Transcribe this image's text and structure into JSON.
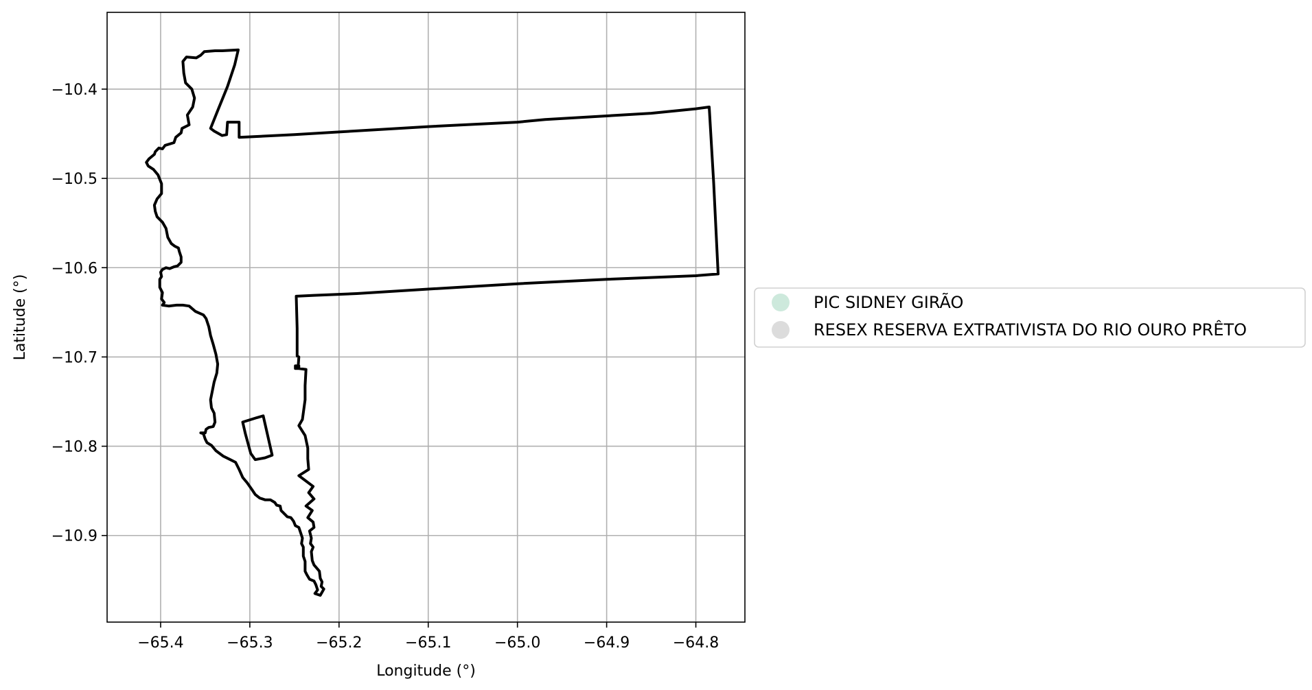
{
  "chart_data": {
    "type": "map",
    "xlabel": "Longitude (°)",
    "ylabel": "Latitude (°)",
    "xlim": [
      -65.46,
      -64.745
    ],
    "ylim": [
      -10.997,
      -10.314
    ],
    "grid": true,
    "x_ticks": [
      {
        "value": -65.4,
        "label": "−65.4"
      },
      {
        "value": -65.3,
        "label": "−65.3"
      },
      {
        "value": -65.2,
        "label": "−65.2"
      },
      {
        "value": -65.1,
        "label": "−65.1"
      },
      {
        "value": -65.0,
        "label": "−65.0"
      },
      {
        "value": -64.9,
        "label": "−64.9"
      },
      {
        "value": -64.8,
        "label": "−64.8"
      }
    ],
    "y_ticks": [
      {
        "value": -10.4,
        "label": "−10.4"
      },
      {
        "value": -10.5,
        "label": "−10.5"
      },
      {
        "value": -10.6,
        "label": "−10.6"
      },
      {
        "value": -10.7,
        "label": "−10.7"
      },
      {
        "value": -10.8,
        "label": "−10.8"
      },
      {
        "value": -10.9,
        "label": "−10.9"
      }
    ],
    "legend_position": "center-right, outside axes",
    "legend": [
      {
        "label": "PIC SIDNEY GIRÃO",
        "color": "#cde9dc"
      },
      {
        "label": "RESEX RESERVA EXTRATIVISTA DO RIO OURO PRÊTO",
        "color": "#dcdcdc"
      }
    ],
    "boundary_color": "#000000",
    "grid_color": "#b0b0b0",
    "features": [
      {
        "name": "boundary-main",
        "coords": [
          [
            -65.313,
            -10.356
          ],
          [
            -65.331,
            -10.357
          ],
          [
            -65.339,
            -10.357
          ],
          [
            -65.351,
            -10.358
          ],
          [
            -65.355,
            -10.362
          ],
          [
            -65.36,
            -10.365
          ],
          [
            -65.371,
            -10.364
          ],
          [
            -65.375,
            -10.369
          ],
          [
            -65.374,
            -10.382
          ],
          [
            -65.372,
            -10.393
          ],
          [
            -65.365,
            -10.4
          ],
          [
            -65.362,
            -10.41
          ],
          [
            -65.364,
            -10.42
          ],
          [
            -65.37,
            -10.429
          ],
          [
            -65.368,
            -10.44
          ],
          [
            -65.376,
            -10.444
          ],
          [
            -65.377,
            -10.449
          ],
          [
            -65.383,
            -10.454
          ],
          [
            -65.385,
            -10.46
          ],
          [
            -65.395,
            -10.463
          ],
          [
            -65.398,
            -10.467
          ],
          [
            -65.402,
            -10.466
          ],
          [
            -65.406,
            -10.47
          ],
          [
            -65.407,
            -10.473
          ],
          [
            -65.413,
            -10.478
          ],
          [
            -65.416,
            -10.482
          ],
          [
            -65.414,
            -10.486
          ],
          [
            -65.408,
            -10.49
          ],
          [
            -65.403,
            -10.496
          ],
          [
            -65.399,
            -10.506
          ],
          [
            -65.399,
            -10.517
          ],
          [
            -65.404,
            -10.523
          ],
          [
            -65.407,
            -10.53
          ],
          [
            -65.406,
            -10.537
          ],
          [
            -65.404,
            -10.543
          ],
          [
            -65.398,
            -10.549
          ],
          [
            -65.394,
            -10.556
          ],
          [
            -65.392,
            -10.566
          ],
          [
            -65.388,
            -10.573
          ],
          [
            -65.384,
            -10.576
          ],
          [
            -65.38,
            -10.578
          ],
          [
            -65.379,
            -10.582
          ],
          [
            -65.377,
            -10.588
          ],
          [
            -65.377,
            -10.594
          ],
          [
            -65.381,
            -10.598
          ],
          [
            -65.385,
            -10.599
          ],
          [
            -65.39,
            -10.601
          ],
          [
            -65.394,
            -10.6
          ],
          [
            -65.398,
            -10.602
          ],
          [
            -65.4,
            -10.605
          ],
          [
            -65.399,
            -10.61
          ],
          [
            -65.401,
            -10.613
          ],
          [
            -65.401,
            -10.622
          ],
          [
            -65.398,
            -10.628
          ],
          [
            -65.399,
            -10.635
          ],
          [
            -65.396,
            -10.639
          ],
          [
            -65.398,
            -10.642
          ],
          [
            -65.391,
            -10.643
          ],
          [
            -65.382,
            -10.642
          ],
          [
            -65.375,
            -10.642
          ],
          [
            -65.368,
            -10.643
          ],
          [
            -65.361,
            -10.649
          ],
          [
            -65.352,
            -10.653
          ],
          [
            -65.349,
            -10.657
          ],
          [
            -65.346,
            -10.666
          ],
          [
            -65.344,
            -10.676
          ],
          [
            -65.341,
            -10.686
          ],
          [
            -65.338,
            -10.697
          ],
          [
            -65.336,
            -10.708
          ],
          [
            -65.337,
            -10.718
          ],
          [
            -65.34,
            -10.728
          ],
          [
            -65.342,
            -10.738
          ],
          [
            -65.344,
            -10.748
          ],
          [
            -65.343,
            -10.757
          ],
          [
            -65.34,
            -10.763
          ],
          [
            -65.339,
            -10.773
          ],
          [
            -65.341,
            -10.778
          ],
          [
            -65.346,
            -10.779
          ],
          [
            -65.349,
            -10.781
          ],
          [
            -65.35,
            -10.785
          ],
          [
            -65.355,
            -10.785
          ],
          [
            -65.352,
            -10.786
          ],
          [
            -65.35,
            -10.792
          ],
          [
            -65.348,
            -10.796
          ],
          [
            -65.343,
            -10.799
          ],
          [
            -65.338,
            -10.805
          ],
          [
            -65.33,
            -10.811
          ],
          [
            -65.322,
            -10.815
          ],
          [
            -65.316,
            -10.818
          ],
          [
            -65.312,
            -10.826
          ],
          [
            -65.308,
            -10.835
          ],
          [
            -65.303,
            -10.841
          ],
          [
            -65.298,
            -10.848
          ],
          [
            -65.294,
            -10.854
          ],
          [
            -65.289,
            -10.858
          ],
          [
            -65.283,
            -10.86
          ],
          [
            -65.277,
            -10.86
          ],
          [
            -65.272,
            -10.863
          ],
          [
            -65.27,
            -10.866
          ],
          [
            -65.266,
            -10.867
          ],
          [
            -65.265,
            -10.872
          ],
          [
            -65.262,
            -10.875
          ],
          [
            -65.258,
            -10.879
          ],
          [
            -65.254,
            -10.88
          ],
          [
            -65.251,
            -10.884
          ],
          [
            -65.249,
            -10.889
          ],
          [
            -65.245,
            -10.891
          ],
          [
            -65.243,
            -10.897
          ],
          [
            -65.241,
            -10.903
          ],
          [
            -65.242,
            -10.909
          ],
          [
            -65.24,
            -10.913
          ],
          [
            -65.24,
            -10.923
          ],
          [
            -65.238,
            -10.929
          ],
          [
            -65.238,
            -10.94
          ],
          [
            -65.236,
            -10.944
          ],
          [
            -65.233,
            -10.949
          ],
          [
            -65.228,
            -10.951
          ],
          [
            -65.226,
            -10.955
          ],
          [
            -65.224,
            -10.961
          ],
          [
            -65.227,
            -10.965
          ],
          [
            -65.221,
            -10.967
          ],
          [
            -65.217,
            -10.96
          ],
          [
            -65.22,
            -10.957
          ],
          [
            -65.219,
            -10.952
          ],
          [
            -65.221,
            -10.948
          ],
          [
            -65.222,
            -10.94
          ],
          [
            -65.228,
            -10.933
          ],
          [
            -65.23,
            -10.928
          ],
          [
            -65.231,
            -10.918
          ],
          [
            -65.229,
            -10.913
          ],
          [
            -65.232,
            -10.909
          ],
          [
            -65.231,
            -10.903
          ],
          [
            -65.233,
            -10.895
          ],
          [
            -65.228,
            -10.891
          ],
          [
            -65.229,
            -10.885
          ],
          [
            -65.235,
            -10.88
          ],
          [
            -65.23,
            -10.872
          ],
          [
            -65.237,
            -10.867
          ],
          [
            -65.228,
            -10.859
          ],
          [
            -65.234,
            -10.852
          ],
          [
            -65.229,
            -10.845
          ],
          [
            -65.245,
            -10.833
          ],
          [
            -65.234,
            -10.826
          ],
          [
            -65.235,
            -10.814
          ],
          [
            -65.235,
            -10.802
          ],
          [
            -65.238,
            -10.788
          ],
          [
            -65.245,
            -10.777
          ],
          [
            -65.241,
            -10.77
          ],
          [
            -65.238,
            -10.748
          ],
          [
            -65.238,
            -10.732
          ],
          [
            -65.237,
            -10.714
          ],
          [
            -65.245,
            -10.713
          ],
          [
            -65.245,
            -10.71
          ],
          [
            -65.249,
            -10.71
          ],
          [
            -65.249,
            -10.713
          ],
          [
            -65.246,
            -10.713
          ],
          [
            -65.245,
            -10.7
          ],
          [
            -65.247,
            -10.699
          ],
          [
            -65.247,
            -10.668
          ],
          [
            -65.248,
            -10.632
          ],
          [
            -65.228,
            -10.631
          ],
          [
            -65.18,
            -10.629
          ],
          [
            -65.1,
            -10.624
          ],
          [
            -65.0,
            -10.618
          ],
          [
            -64.9,
            -10.613
          ],
          [
            -64.8,
            -10.609
          ],
          [
            -64.775,
            -10.607
          ],
          [
            -64.78,
            -10.505
          ],
          [
            -64.785,
            -10.42
          ],
          [
            -64.8,
            -10.422
          ],
          [
            -64.85,
            -10.427
          ],
          [
            -64.9,
            -10.43
          ],
          [
            -64.969,
            -10.434
          ],
          [
            -65.0,
            -10.437
          ],
          [
            -65.1,
            -10.442
          ],
          [
            -65.15,
            -10.445
          ],
          [
            -65.2,
            -10.448
          ],
          [
            -65.25,
            -10.451
          ],
          [
            -65.312,
            -10.454
          ],
          [
            -65.312,
            -10.437
          ],
          [
            -65.325,
            -10.437
          ],
          [
            -65.326,
            -10.451
          ],
          [
            -65.331,
            -10.452
          ],
          [
            -65.34,
            -10.447
          ],
          [
            -65.344,
            -10.444
          ],
          [
            -65.336,
            -10.424
          ],
          [
            -65.325,
            -10.397
          ],
          [
            -65.317,
            -10.373
          ],
          [
            -65.313,
            -10.356
          ]
        ]
      },
      {
        "name": "boundary-enclave",
        "coords": [
          [
            -65.308,
            -10.773
          ],
          [
            -65.292,
            -10.768
          ],
          [
            -65.285,
            -10.766
          ],
          [
            -65.275,
            -10.81
          ],
          [
            -65.283,
            -10.813
          ],
          [
            -65.294,
            -10.815
          ],
          [
            -65.299,
            -10.808
          ],
          [
            -65.305,
            -10.786
          ],
          [
            -65.308,
            -10.773
          ]
        ]
      }
    ]
  }
}
